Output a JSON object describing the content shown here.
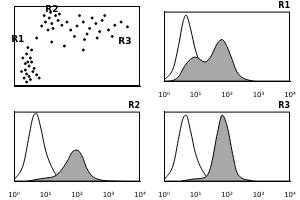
{
  "chart_data": [
    {
      "type": "scatter",
      "color": "#000000",
      "marker": "dot",
      "grid": false,
      "tick_labels": false,
      "xlim": [
        0,
        100
      ],
      "ylim": [
        0,
        100
      ],
      "x": [
        8,
        10,
        9,
        12,
        11,
        13,
        10,
        14,
        12,
        15,
        9,
        16,
        7,
        11,
        13,
        18,
        20,
        6,
        14,
        10,
        22,
        25,
        28,
        30,
        33,
        27,
        35,
        38,
        24,
        31,
        36,
        29,
        45,
        50,
        55,
        60,
        65,
        70,
        75,
        80,
        58,
        68,
        72,
        62,
        52,
        85,
        48,
        78,
        90,
        56,
        66,
        42,
        40,
        55,
        30,
        18
      ],
      "values": [
        10,
        15,
        20,
        25,
        30,
        35,
        40,
        45,
        12,
        18,
        28,
        22,
        35,
        48,
        8,
        14,
        10,
        18,
        30,
        5,
        75,
        80,
        85,
        78,
        88,
        70,
        82,
        76,
        88,
        72,
        90,
        92,
        70,
        75,
        80,
        72,
        78,
        82,
        70,
        76,
        65,
        68,
        88,
        85,
        88,
        80,
        62,
        62,
        74,
        58,
        60,
        80,
        50,
        45,
        55,
        60
      ],
      "annotations": [
        {
          "text": "R1",
          "x": 3,
          "y": 58
        },
        {
          "text": "R2",
          "x": 30,
          "y": 95
        },
        {
          "text": "R3",
          "x": 88,
          "y": 55
        }
      ]
    },
    {
      "type": "line",
      "title": "R1",
      "log": "x",
      "grid": false,
      "tick_labels": "x",
      "x": [
        1,
        2,
        3,
        4,
        5,
        7,
        10,
        20,
        30,
        50,
        70,
        100,
        150,
        200,
        300,
        500,
        1000,
        10000
      ],
      "series": [
        {
          "type": "area",
          "color": "#a8a8a8",
          "values": [
            0,
            2,
            8,
            18,
            25,
            32,
            35,
            28,
            35,
            55,
            60,
            50,
            30,
            15,
            6,
            2,
            0,
            0
          ]
        },
        {
          "type": "line",
          "color": "#000000",
          "values": [
            2,
            20,
            55,
            85,
            95,
            75,
            45,
            12,
            5,
            2,
            1,
            0,
            0,
            0,
            0,
            0,
            0,
            0
          ]
        }
      ],
      "xlim": [
        1,
        10000
      ],
      "xticks": [
        {
          "value": 1,
          "label": "10⁰"
        },
        {
          "value": 10,
          "label": "10¹"
        },
        {
          "value": 100,
          "label": "10²"
        },
        {
          "value": 1000,
          "label": "10³"
        },
        {
          "value": 10000,
          "label": "10⁴"
        }
      ],
      "ylim": [
        0,
        100
      ]
    },
    {
      "type": "line",
      "title": "R2",
      "log": "x",
      "grid": false,
      "tick_labels": "x",
      "x": [
        1,
        2,
        3,
        4,
        5,
        7,
        10,
        20,
        30,
        50,
        70,
        100,
        150,
        200,
        300,
        500,
        1000,
        10000
      ],
      "series": [
        {
          "type": "area",
          "color": "#a8a8a8",
          "values": [
            0,
            0,
            1,
            2,
            3,
            4,
            5,
            8,
            15,
            30,
            42,
            45,
            35,
            20,
            8,
            3,
            1,
            0
          ]
        },
        {
          "type": "line",
          "color": "#000000",
          "values": [
            2,
            25,
            65,
            92,
            98,
            78,
            45,
            12,
            4,
            1,
            0,
            0,
            0,
            0,
            0,
            0,
            0,
            0
          ]
        }
      ],
      "xlim": [
        1,
        10000
      ],
      "xticks": [
        {
          "value": 1,
          "label": "10⁰"
        },
        {
          "value": 10,
          "label": "10¹"
        },
        {
          "value": 100,
          "label": "10²"
        },
        {
          "value": 1000,
          "label": "10³"
        },
        {
          "value": 10000,
          "label": "10⁴"
        }
      ],
      "ylim": [
        0,
        100
      ]
    },
    {
      "type": "line",
      "title": "R3",
      "log": "x",
      "grid": false,
      "tick_labels": "x",
      "x": [
        1,
        2,
        3,
        4,
        5,
        7,
        10,
        20,
        30,
        50,
        70,
        100,
        150,
        200,
        300,
        500,
        1000,
        10000
      ],
      "series": [
        {
          "type": "area",
          "color": "#a8a8a8",
          "values": [
            0,
            0,
            0,
            1,
            2,
            3,
            4,
            6,
            20,
            70,
            95,
            80,
            40,
            15,
            5,
            2,
            0,
            0
          ]
        },
        {
          "type": "line",
          "color": "#000000",
          "values": [
            2,
            25,
            65,
            90,
            95,
            72,
            40,
            10,
            3,
            1,
            0,
            0,
            0,
            0,
            0,
            0,
            0,
            0
          ]
        }
      ],
      "xlim": [
        1,
        10000
      ],
      "xticks": [
        {
          "value": 1,
          "label": "10⁰"
        },
        {
          "value": 10,
          "label": "10¹"
        },
        {
          "value": 100,
          "label": "10²"
        },
        {
          "value": 1000,
          "label": "10³"
        },
        {
          "value": 10000,
          "label": "10⁴"
        }
      ],
      "ylim": [
        0,
        100
      ]
    }
  ]
}
